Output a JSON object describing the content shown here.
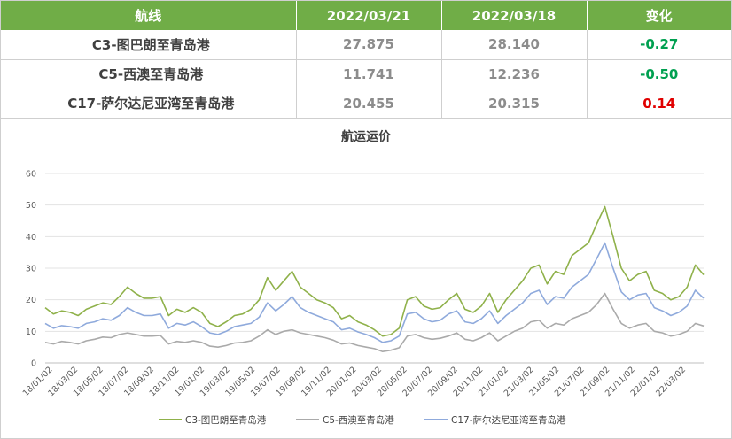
{
  "table": {
    "headers": [
      "航线",
      "2022/03/21",
      "2022/03/18",
      "变化"
    ],
    "rows": [
      {
        "route": "C3-图巴朗至青岛港",
        "v1": "27.875",
        "v2": "28.140",
        "change": "-0.27"
      },
      {
        "route": "C5-西澳至青岛港",
        "v1": "11.741",
        "v2": "12.236",
        "change": "-0.50"
      },
      {
        "route": "C17-萨尔达尼亚湾至青岛港",
        "v1": "20.455",
        "v2": "20.315",
        "change": "0.14"
      }
    ],
    "colors": {
      "header_bg": "#70ad47",
      "negative": "#00a050",
      "positive": "#e00000"
    }
  },
  "chart_data": {
    "type": "line",
    "title": "航运运价",
    "ylim": [
      0,
      60
    ],
    "yticks": [
      "0",
      "10",
      "20",
      "30",
      "40",
      "50",
      "60"
    ],
    "xticks": [
      "18/01/02",
      "18/03/02",
      "18/05/02",
      "18/07/02",
      "18/09/02",
      "18/11/02",
      "19/01/02",
      "19/03/02",
      "19/05/02",
      "19/07/02",
      "19/09/02",
      "19/11/02",
      "20/01/02",
      "20/03/02",
      "20/05/02",
      "20/07/02",
      "20/09/02",
      "20/11/02",
      "21/01/02",
      "21/03/02",
      "21/05/02",
      "21/07/02",
      "21/09/02",
      "21/11/02",
      "22/01/02",
      "22/03/02"
    ],
    "grid": true,
    "legend": "bottom",
    "series": [
      {
        "name": "C3-图巴朗至青岛港",
        "color": "#8fb14a",
        "values": [
          17.5,
          15.5,
          16.5,
          16,
          15,
          17,
          18,
          19,
          18.5,
          21,
          24,
          22,
          20.5,
          20.5,
          21,
          15,
          17,
          16,
          17.5,
          16,
          12.5,
          11.5,
          13,
          15,
          15.5,
          17,
          20,
          27,
          23,
          26,
          29,
          24,
          22,
          20,
          19,
          17.5,
          14,
          15,
          13,
          12,
          10.5,
          8.5,
          9,
          11,
          20,
          21,
          18,
          17,
          17.5,
          20,
          22,
          17,
          16,
          18,
          22,
          16,
          20,
          23,
          26,
          30,
          31,
          25,
          29,
          28,
          34,
          36,
          38,
          44,
          49.5,
          40,
          30,
          26,
          28,
          29,
          23,
          22,
          20,
          21,
          24,
          31,
          27.9
        ]
      },
      {
        "name": "C5-西澳至青岛港",
        "color": "#aaaaaa",
        "values": [
          6.5,
          6,
          6.8,
          6.5,
          6,
          7,
          7.5,
          8.2,
          8,
          9,
          9.5,
          9,
          8.5,
          8.5,
          8.7,
          6,
          6.8,
          6.5,
          7,
          6.5,
          5.3,
          5,
          5.5,
          6.3,
          6.5,
          7,
          8.5,
          10.5,
          9,
          10,
          10.5,
          9.5,
          9,
          8.5,
          8,
          7.2,
          6,
          6.3,
          5.5,
          5,
          4.5,
          3.6,
          4,
          4.8,
          8.5,
          9,
          8,
          7.5,
          7.8,
          8.5,
          9.5,
          7.5,
          7,
          8,
          9.5,
          7,
          8.5,
          10,
          11,
          13,
          13.5,
          11,
          12.5,
          12,
          14,
          15,
          16,
          18.5,
          22,
          17,
          12.5,
          11,
          12,
          12.5,
          10,
          9.5,
          8.5,
          9,
          10,
          12.5,
          11.7
        ]
      },
      {
        "name": "C17-萨尔达尼亚湾至青岛港",
        "color": "#8faadc",
        "values": [
          12.5,
          11,
          11.8,
          11.5,
          11,
          12.5,
          13,
          14,
          13.5,
          15,
          17.5,
          16,
          15,
          15,
          15.5,
          11,
          12.5,
          12,
          13,
          11.5,
          9.5,
          9,
          10,
          11.5,
          12,
          12.5,
          14.5,
          19,
          16.5,
          18.5,
          21,
          17.5,
          16,
          15,
          14,
          13,
          10.5,
          11,
          9.8,
          9,
          8,
          6.5,
          7,
          8.5,
          15.5,
          16,
          14,
          13,
          13.5,
          15.5,
          16.5,
          13,
          12.5,
          14,
          16.5,
          12.5,
          15,
          17,
          19,
          22,
          23,
          18.5,
          21,
          20.5,
          24,
          26,
          28,
          33,
          38,
          30,
          22.5,
          20,
          21.5,
          22,
          17.5,
          16.5,
          15,
          16,
          18,
          23,
          20.5
        ]
      }
    ]
  }
}
